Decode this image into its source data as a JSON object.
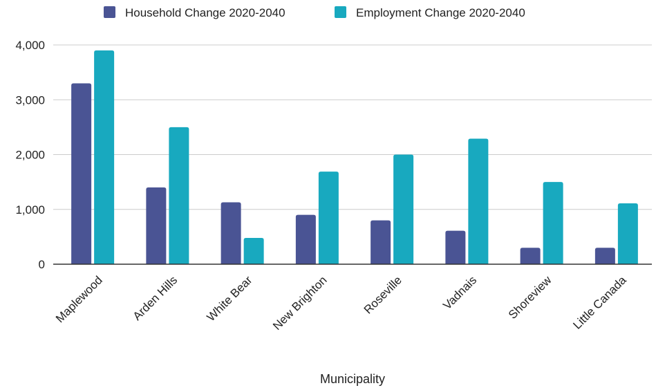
{
  "chart_data": {
    "type": "bar",
    "title": "",
    "xlabel": "Municipality",
    "ylabel": "",
    "categories": [
      "Maplewood",
      "Arden Hills",
      "White Bear",
      "New Brighton",
      "Roseville",
      "Vadnais",
      "Shoreview",
      "Little Canada"
    ],
    "series": [
      {
        "name": "Household Change 2020-2040",
        "color": "#4a5494",
        "values": [
          3300,
          1400,
          1130,
          900,
          800,
          610,
          300,
          300
        ]
      },
      {
        "name": "Employment Change 2020-2040",
        "color": "#18a9bf",
        "values": [
          3900,
          2500,
          480,
          1690,
          2000,
          2290,
          1500,
          1110
        ]
      }
    ],
    "ylim": [
      0,
      4000
    ],
    "yticks": [
      0,
      1000,
      2000,
      3000,
      4000
    ],
    "ytick_labels": [
      "0",
      "1,000",
      "2,000",
      "3,000",
      "4,000"
    ],
    "grid": true,
    "legend_position": "top"
  }
}
